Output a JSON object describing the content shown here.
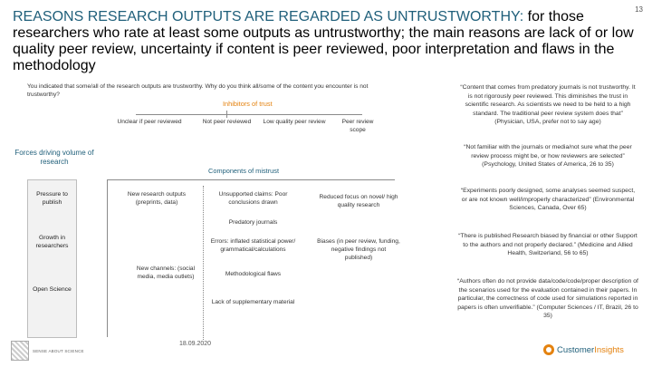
{
  "page_number": "13",
  "title": {
    "lead": "REASONS RESEARCH OUTPUTS ARE REGARDED AS UNTRUSTWORTHY:",
    "rest": " for those researchers who rate at least some outputs as untrustworthy; the main reasons are lack of or low quality peer review, uncertainty if content is peer reviewed, poor interpretation and flaws in the methodology"
  },
  "intro": "You indicated that some/all of the research outputs are trustworthy. Why do you think all/some of the content you encounter is not trustworthy?",
  "inhibitors": {
    "label": "Inhibitors of trust",
    "items": [
      "Unclear if peer reviewed",
      "Not peer reviewed",
      "Low quality peer review",
      "Peer review scope"
    ]
  },
  "forces": {
    "label": "Forces driving volume of research",
    "items": [
      "Pressure to publish",
      "Growth in researchers",
      "Open Science"
    ]
  },
  "components": {
    "label": "Components of mistrust",
    "new_outputs": "New research outputs (preprints, data)",
    "new_channels": "New channels: (social media, media outlets)",
    "unsupported": "Unsupported claims: Poor conclusions drawn",
    "predatory": "Predatory journals",
    "errors": "Errors: inflated statistical power/ grammatical/calculations",
    "methodological": "Methodological flaws",
    "supplementary": "Lack of supplementary material",
    "reduced_focus": "Reduced focus on novel/ high quality research",
    "biases": "Biases (in peer review, funding, negative findings not published)"
  },
  "quotes": [
    "“Content that comes from predatory journals is not trustworthy. It is not rigorously peer reviewed. This diminishes the trust in scientific research. As scientists we need to be held to a high standard. The traditional peer review system does that” (Physician, USA, prefer not to say age)",
    "“Not familiar with the journals or media/not sure what the peer review process might be, or how reviewers are selected” (Psychology, United States of America, 26 to 35)",
    "“Experiments poorly designed, some analyses seemed suspect, or are not known well/improperly characterized” (Environmental Sciences, Canada, Over 65)",
    "“There is published Research biased by financial or other Support to the authors and not properly declared.” (Medicine and Allied Health, Switzerland, 56 to 65)",
    "“Authors often do not provide data/code/code/proper description of the scenarios used for the evaluation contained in their papers. In particular, the correctness of code used for simulations reported in papers is often unverifiable.” (Computer Sciences / IT, Brazil, 26 to 35)"
  ],
  "footer": {
    "date": "18.09.2020",
    "logo_left": "SENSE ABOUT SCIENCE",
    "logo_right_a": "Customer",
    "logo_right_b": "Insights"
  },
  "colors": {
    "accent_blue": "#1f5f7a",
    "accent_orange": "#e4820f",
    "box_fill": "#f2f2f2"
  }
}
